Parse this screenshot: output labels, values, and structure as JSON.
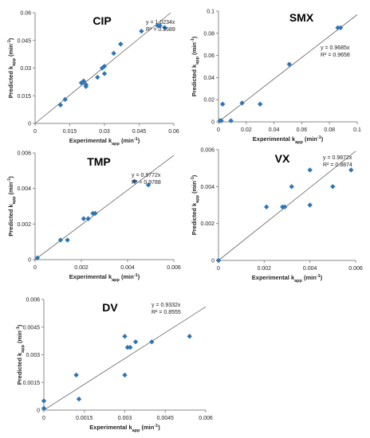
{
  "chart_data": [
    {
      "type": "scatter",
      "title": "CIP",
      "xlabel": "Experimental k_app (min⁻¹)",
      "ylabel": "Predicted k_app (min⁻¹)",
      "xlim": [
        0,
        0.06
      ],
      "ylim": [
        0,
        0.06
      ],
      "xticks": [
        0,
        0.015,
        0.03,
        0.045,
        0.06
      ],
      "xtick_labels": [
        "0",
        "0.015",
        "0.03",
        "0.045",
        "0.06"
      ],
      "yticks": [
        0,
        0.015,
        0.03,
        0.045,
        0.06
      ],
      "ytick_labels": [
        "0",
        "0.015",
        "0.03",
        "0.045",
        "0.06"
      ],
      "fit_slope": 1.0234,
      "equation": "y = 1.0234x",
      "r2": "R² = 0.9689",
      "legend_position": "right",
      "points": [
        [
          0.011,
          0.01
        ],
        [
          0.013,
          0.013
        ],
        [
          0.02,
          0.022
        ],
        [
          0.021,
          0.023
        ],
        [
          0.022,
          0.02
        ],
        [
          0.022,
          0.021
        ],
        [
          0.027,
          0.025
        ],
        [
          0.029,
          0.03
        ],
        [
          0.03,
          0.031
        ],
        [
          0.03,
          0.027
        ],
        [
          0.034,
          0.038
        ],
        [
          0.037,
          0.043
        ],
        [
          0.046,
          0.05
        ],
        [
          0.053,
          0.053
        ],
        [
          0.054,
          0.053
        ],
        [
          0.056,
          0.052
        ]
      ]
    },
    {
      "type": "scatter",
      "title": "SMX",
      "xlabel": "Experimental k_app (min⁻¹)",
      "ylabel": "Predicted k_app (min⁻¹)",
      "xlim": [
        0,
        0.1
      ],
      "ylim": [
        0,
        0.1
      ],
      "xticks": [
        0,
        0.02,
        0.04,
        0.06,
        0.08,
        0.1
      ],
      "xtick_labels": [
        "0",
        "0.02",
        "0.04",
        "0.06",
        "0.08",
        "0.1"
      ],
      "yticks": [
        0,
        0.02,
        0.04,
        0.06,
        0.08,
        0.1
      ],
      "ytick_labels": [
        "0",
        "0.02",
        "0.04",
        "0.06",
        "0.08",
        "0.1"
      ],
      "fit_slope": 0.9685,
      "equation": "y = 0.9685x",
      "r2": "R² = 0.9658",
      "legend_position": "right",
      "points": [
        [
          0.001,
          0.001
        ],
        [
          0.002,
          0.001
        ],
        [
          0.003,
          0.016
        ],
        [
          0.009,
          0.001
        ],
        [
          0.017,
          0.017
        ],
        [
          0.03,
          0.016
        ],
        [
          0.051,
          0.052
        ],
        [
          0.086,
          0.085
        ],
        [
          0.088,
          0.085
        ]
      ]
    },
    {
      "type": "scatter",
      "title": "TMP",
      "xlabel": "Experimental k_app (min⁻¹)",
      "ylabel": "Predicted k_app (min⁻¹)",
      "xlim": [
        0,
        0.006
      ],
      "ylim": [
        0,
        0.006
      ],
      "xticks": [
        0,
        0.002,
        0.004,
        0.006
      ],
      "xtick_labels": [
        "0",
        "0.002",
        "0.004",
        "0.006"
      ],
      "yticks": [
        0,
        0.002,
        0.004,
        0.006
      ],
      "ytick_labels": [
        "0",
        "0.002",
        "0.004",
        "0.006"
      ],
      "fit_slope": 0.9772,
      "equation": "y = 0.9772x",
      "r2": "R² = 0.9788",
      "legend_position": "right",
      "points": [
        [
          0.0001,
          0.0001
        ],
        [
          0.0011,
          0.0011
        ],
        [
          0.0014,
          0.0011
        ],
        [
          0.0021,
          0.0023
        ],
        [
          0.0023,
          0.0023
        ],
        [
          0.0025,
          0.0026
        ],
        [
          0.0026,
          0.0026
        ],
        [
          0.0043,
          0.0044
        ],
        [
          0.0049,
          0.0042
        ]
      ]
    },
    {
      "type": "scatter",
      "title": "VX",
      "xlabel": "Experimental k_app (min⁻¹)",
      "ylabel": "Predicted k_app (min⁻¹)",
      "xlim": [
        0,
        0.006
      ],
      "ylim": [
        0,
        0.006
      ],
      "xticks": [
        0,
        0.002,
        0.004,
        0.006
      ],
      "xtick_labels": [
        "0",
        "0.002",
        "0.004",
        "0.006"
      ],
      "yticks": [
        0,
        0.002,
        0.004,
        0.006
      ],
      "ytick_labels": [
        "0",
        "0.002",
        "0.004",
        "0.006"
      ],
      "fit_slope": 0.9872,
      "equation": "y = 0.9872x",
      "r2": "R² = 0.8874",
      "legend_position": "right",
      "points": [
        [
          0.0,
          0.0
        ],
        [
          0.0021,
          0.0029
        ],
        [
          0.0028,
          0.0029
        ],
        [
          0.0029,
          0.0029
        ],
        [
          0.0032,
          0.004
        ],
        [
          0.004,
          0.0049
        ],
        [
          0.004,
          0.003
        ],
        [
          0.005,
          0.004
        ],
        [
          0.0058,
          0.0049
        ]
      ]
    },
    {
      "type": "scatter",
      "title": "DV",
      "xlabel": "Experimental k_app (min⁻¹)",
      "ylabel": "Predicted k_app (min⁻¹)",
      "xlim": [
        0,
        0.006
      ],
      "ylim": [
        0,
        0.006
      ],
      "xticks": [
        0,
        0.0015,
        0.003,
        0.0045,
        0.006
      ],
      "xtick_labels": [
        "0",
        "0.0015",
        "0.003",
        "0.0045",
        "0.006"
      ],
      "yticks": [
        0,
        0.0015,
        0.003,
        0.0045,
        0.006
      ],
      "ytick_labels": [
        "0",
        "0.0015",
        "0.003",
        "0.0045",
        "0.006"
      ],
      "fit_slope": 0.9332,
      "equation": "y = 0.9332x",
      "r2": "R² = 0.8555",
      "legend_position": "top-right",
      "points": [
        [
          0.0,
          0.0005
        ],
        [
          0.0,
          0.0001
        ],
        [
          0.0012,
          0.0019
        ],
        [
          0.0013,
          0.0006
        ],
        [
          0.003,
          0.0019
        ],
        [
          0.003,
          0.004
        ],
        [
          0.0031,
          0.0034
        ],
        [
          0.0032,
          0.0034
        ],
        [
          0.0034,
          0.0037
        ],
        [
          0.004,
          0.0037
        ],
        [
          0.0054,
          0.004
        ]
      ]
    }
  ],
  "colors": {
    "marker": "#2e75b6",
    "fit_line": "#666666",
    "axis": "#888888"
  }
}
